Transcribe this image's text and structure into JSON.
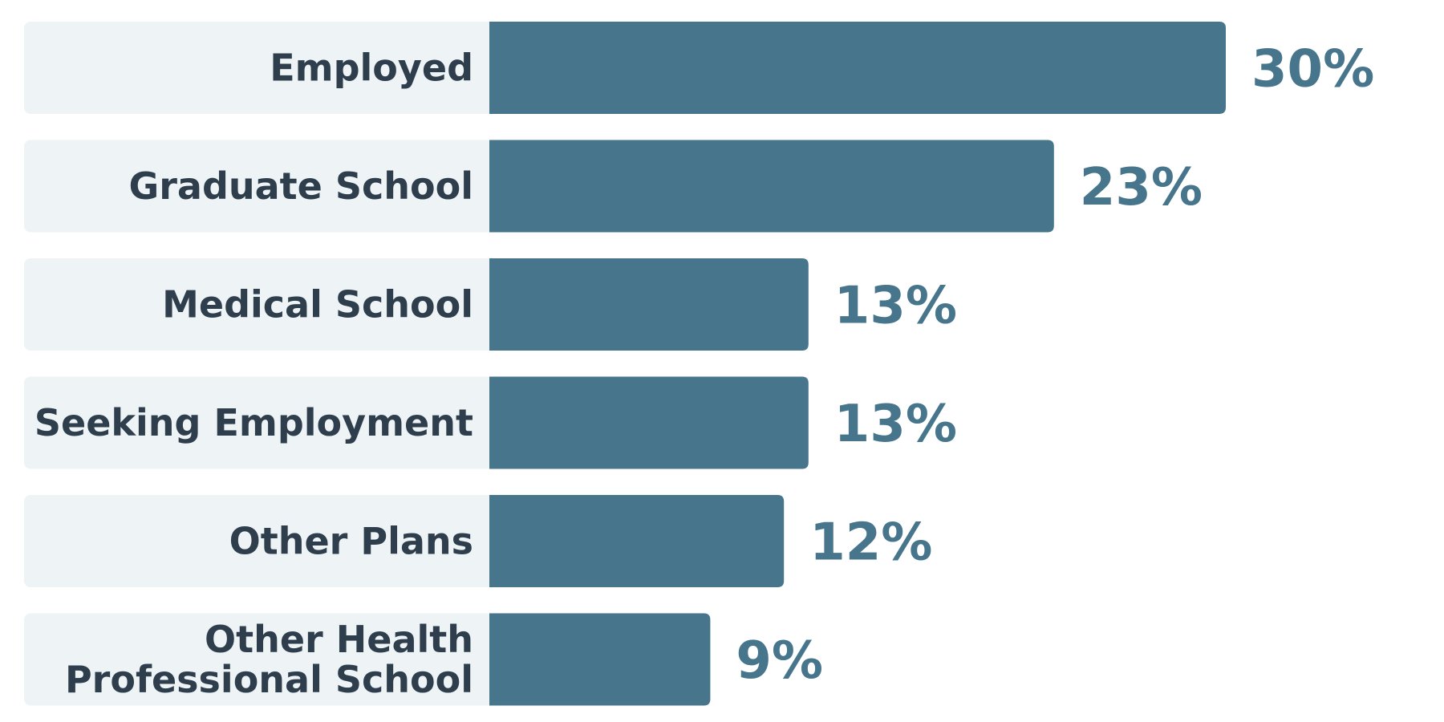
{
  "colors": {
    "bar": "#46758c",
    "row_background": "#eef3f6",
    "label_text": "#2f3e4c",
    "value_text": "#46758c",
    "page_background": "#ffffff"
  },
  "chart_data": {
    "type": "bar",
    "orientation": "horizontal",
    "categories": [
      [
        "Employed"
      ],
      [
        "Graduate School"
      ],
      [
        "Medical School"
      ],
      [
        "Seeking Employment"
      ],
      [
        "Other Plans"
      ],
      [
        "Other Health",
        "Professional School"
      ]
    ],
    "values": [
      30,
      23,
      13,
      13,
      12,
      9
    ],
    "value_labels": [
      "30%",
      "23%",
      "13%",
      "13%",
      "12%",
      "9%"
    ],
    "unit": "%",
    "xlim": [
      0,
      30
    ],
    "grid": false,
    "legend": "none"
  }
}
